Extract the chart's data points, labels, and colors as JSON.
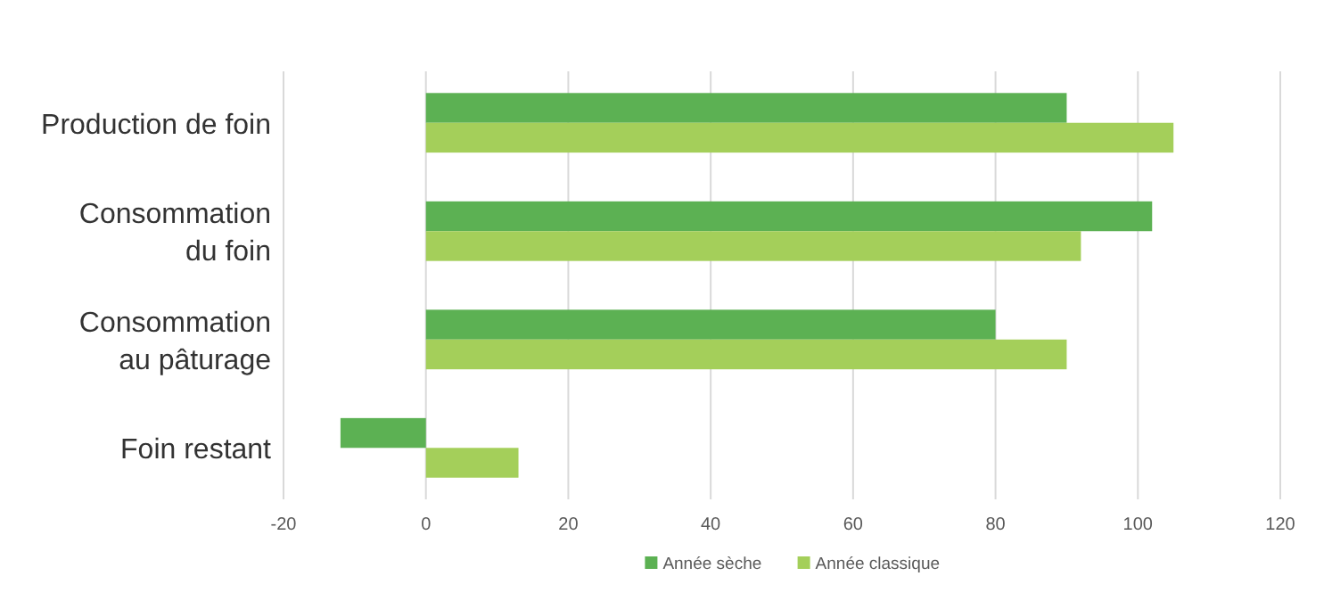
{
  "chart_data": {
    "type": "bar",
    "orientation": "horizontal",
    "categories": [
      "Production de foin",
      "Consommation\ndu foin",
      "Consommation\nau pâturage",
      "Foin restant"
    ],
    "series": [
      {
        "name": "Année sèche",
        "color": "#5cb153",
        "values": [
          90,
          102,
          80,
          -12
        ]
      },
      {
        "name": "Année classique",
        "color": "#a4cf5a",
        "values": [
          105,
          92,
          90,
          13
        ]
      }
    ],
    "xlim": [
      -20,
      120
    ],
    "xticks": [
      -20,
      0,
      20,
      40,
      60,
      80,
      100,
      120
    ],
    "grid": "x",
    "legend": "bottom"
  }
}
